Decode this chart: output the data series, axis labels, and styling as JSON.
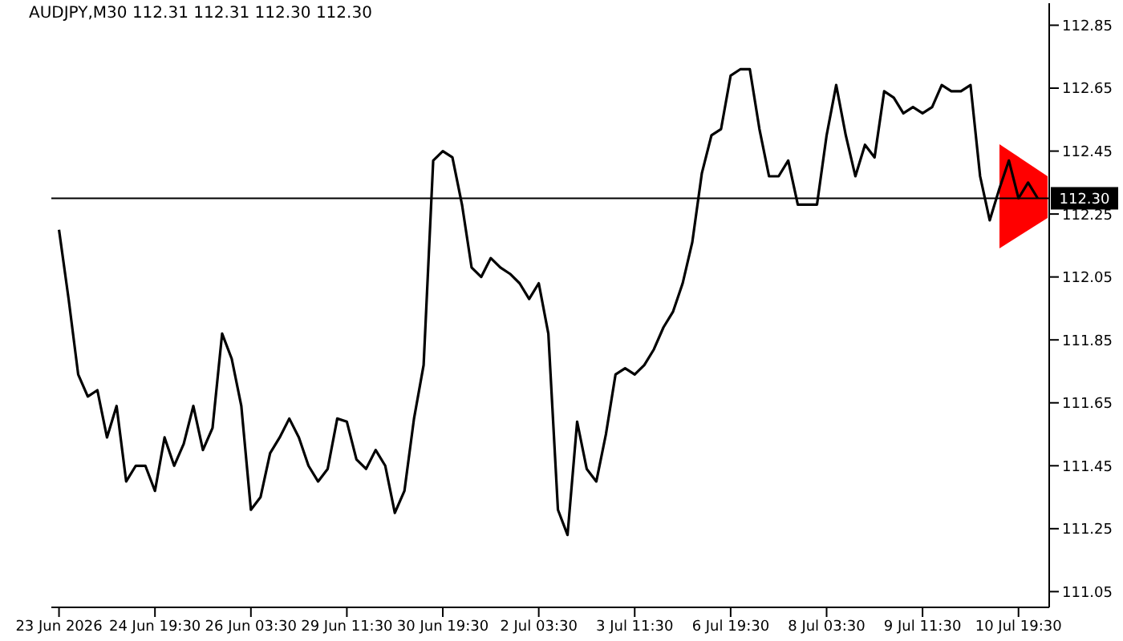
{
  "chart_data": {
    "type": "line",
    "title": "AUDJPY,M30  112.31 112.31 112.30 112.30",
    "categories": [
      "23 Jun 2026",
      null,
      null,
      null,
      null,
      null,
      null,
      null,
      null,
      null,
      "24 Jun 19:30",
      null,
      null,
      null,
      null,
      null,
      null,
      null,
      null,
      null,
      "26 Jun 03:30",
      null,
      null,
      null,
      null,
      null,
      null,
      null,
      null,
      null,
      "29 Jun 11:30",
      null,
      null,
      null,
      null,
      null,
      null,
      null,
      null,
      null,
      "30 Jun 19:30",
      null,
      null,
      null,
      null,
      null,
      null,
      null,
      null,
      null,
      "2 Jul 03:30",
      null,
      null,
      null,
      null,
      null,
      null,
      null,
      null,
      null,
      "3 Jul 11:30",
      null,
      null,
      null,
      null,
      null,
      null,
      null,
      null,
      null,
      "6 Jul 19:30",
      null,
      null,
      null,
      null,
      null,
      null,
      null,
      null,
      null,
      "8 Jul 03:30",
      null,
      null,
      null,
      null,
      null,
      null,
      null,
      null,
      null,
      "9 Jul 11:30",
      null,
      null,
      null,
      null,
      null,
      null,
      null,
      null,
      null,
      "10 Jul 19:30",
      null,
      null
    ],
    "values": [
      112.2,
      111.98,
      111.74,
      111.67,
      111.69,
      111.54,
      111.64,
      111.4,
      111.45,
      111.45,
      111.37,
      111.54,
      111.45,
      111.52,
      111.64,
      111.5,
      111.57,
      111.87,
      111.79,
      111.64,
      111.31,
      111.35,
      111.49,
      111.54,
      111.6,
      111.54,
      111.45,
      111.4,
      111.44,
      111.6,
      111.59,
      111.47,
      111.44,
      111.5,
      111.45,
      111.3,
      111.37,
      111.6,
      111.77,
      112.42,
      112.45,
      112.43,
      112.28,
      112.08,
      112.05,
      112.11,
      112.08,
      112.06,
      112.03,
      111.98,
      112.03,
      111.87,
      111.31,
      111.23,
      111.59,
      111.44,
      111.4,
      111.55,
      111.74,
      111.76,
      111.74,
      111.77,
      111.82,
      111.89,
      111.94,
      112.03,
      112.16,
      112.38,
      112.5,
      112.52,
      112.69,
      112.71,
      112.71,
      112.52,
      112.37,
      112.37,
      112.42,
      112.28,
      112.28,
      112.28,
      112.5,
      112.66,
      112.5,
      112.37,
      112.47,
      112.43,
      112.64,
      112.62,
      112.57,
      112.59,
      112.57,
      112.59,
      112.66,
      112.64,
      112.64,
      112.66,
      112.37,
      112.23,
      112.33,
      112.42,
      112.3,
      112.35,
      112.3
    ],
    "color": "#000000",
    "ylim": [
      111.0,
      112.92
    ],
    "yticks": [
      111.05,
      111.25,
      111.45,
      111.65,
      111.85,
      112.05,
      112.25,
      112.45,
      112.65,
      112.85
    ],
    "ref_lines": [
      {
        "axis": "y",
        "value": 112.3,
        "label": "112.30",
        "color": "#000000"
      }
    ]
  }
}
